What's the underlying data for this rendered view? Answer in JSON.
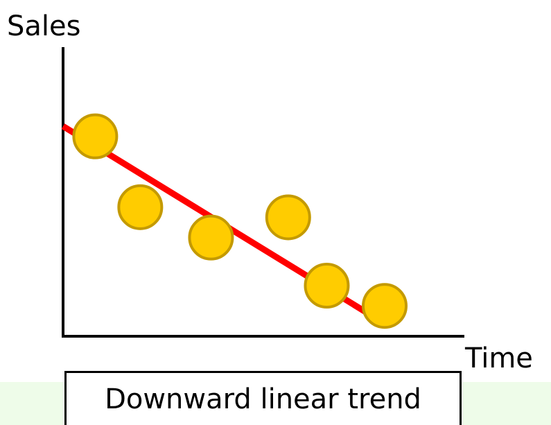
{
  "chart_data": {
    "type": "scatter",
    "title": "",
    "xlabel": "Time",
    "ylabel": "Sales",
    "ticks_shown": false,
    "grid": false,
    "xlim": [
      0,
      10
    ],
    "ylim": [
      0,
      10
    ],
    "points": [
      {
        "x": 1.0,
        "y": 7.9
      },
      {
        "x": 2.4,
        "y": 5.1
      },
      {
        "x": 4.6,
        "y": 3.9
      },
      {
        "x": 7.0,
        "y": 4.7
      },
      {
        "x": 8.2,
        "y": 2.0
      },
      {
        "x": 10.0,
        "y": 1.2
      }
    ],
    "trend_line": {
      "x": [
        0,
        10.0
      ],
      "y": [
        8.3,
        0.5
      ]
    },
    "annotation": "Downward linear trend"
  },
  "colors": {
    "marker_fill": "#ffcc00",
    "marker_stroke": "#c49a00",
    "trend_line": "#ff0000",
    "axis": "#000000",
    "bottom_band": "#eefce9"
  }
}
